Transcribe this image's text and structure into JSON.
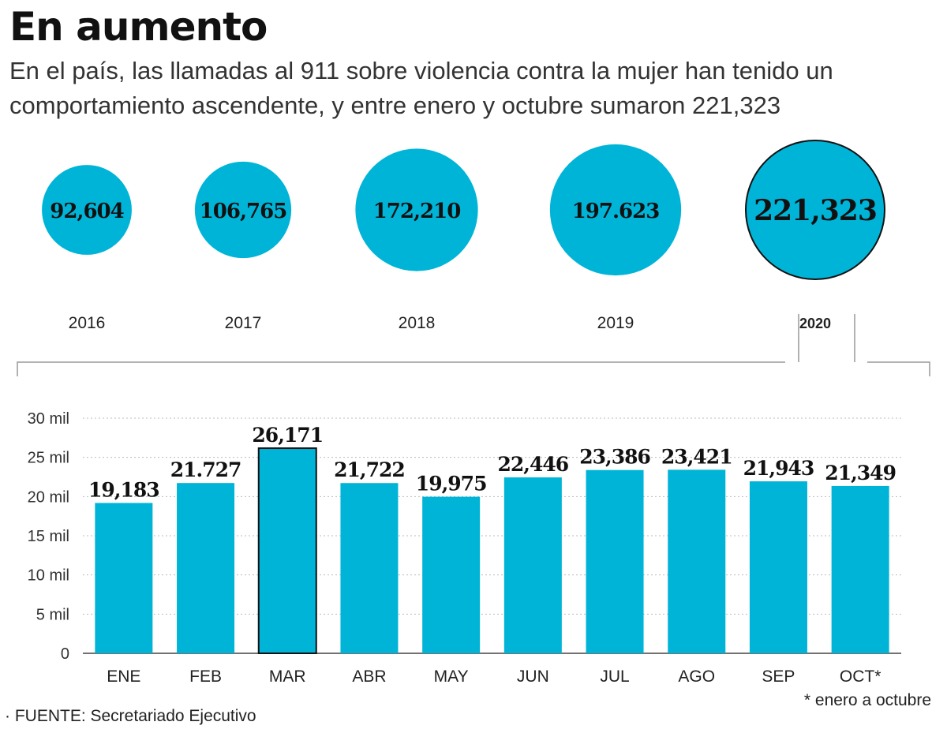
{
  "header": {
    "title": "En aumento",
    "subtitle": "En el país, las llamadas al 911 sobre violencia contra la mujer han tenido un comportamiento ascendente, y entre enero y octubre sumaron 221,323"
  },
  "colors": {
    "accent": "#00b4d8",
    "highlight_stroke": "#111111",
    "axis": "#444444",
    "grid": "#bbbbbb"
  },
  "footer": {
    "footnote": "* enero a octubre",
    "source": "· FUENTE: Secretariado Ejecutivo"
  },
  "chart_data": [
    {
      "type": "bubble",
      "title": "",
      "categories": [
        "2016",
        "2017",
        "2018",
        "2019",
        "2020"
      ],
      "values": [
        92604,
        106765,
        172210,
        197623,
        221323
      ],
      "value_labels": [
        "92,604",
        "106,765",
        "172,210",
        "197.623",
        "221,323"
      ],
      "highlight": "2020"
    },
    {
      "type": "bar",
      "title": "",
      "xlabel": "",
      "ylabel": "",
      "categories": [
        "ENE",
        "FEB",
        "MAR",
        "ABR",
        "MAY",
        "JUN",
        "JUL",
        "AGO",
        "SEP",
        "OCT*"
      ],
      "values": [
        19183,
        21727,
        26171,
        21722,
        19975,
        22446,
        23386,
        23421,
        21943,
        21349
      ],
      "value_labels": [
        "19,183",
        "21.727",
        "26,171",
        "21,722",
        "19,975",
        "22,446",
        "23,386",
        "23,421",
        "21,943",
        "21,349"
      ],
      "ylim": [
        0,
        30000
      ],
      "yticks": [
        0,
        5000,
        10000,
        15000,
        20000,
        25000,
        30000
      ],
      "ytick_labels": [
        "0",
        "5 mil",
        "10 mil",
        "15 mil",
        "20 mil",
        "25 mil",
        "30 mil"
      ],
      "grid": true,
      "highlight": "MAR"
    }
  ]
}
